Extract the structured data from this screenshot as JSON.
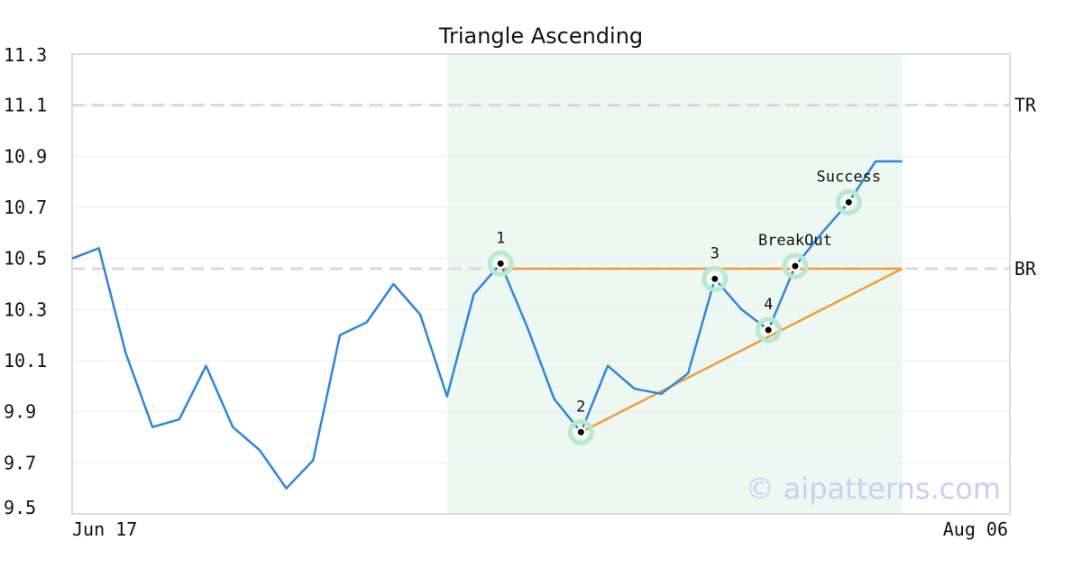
{
  "chart_data": {
    "type": "line",
    "title": "Triangle Ascending",
    "x_labels": {
      "start": "Jun 17",
      "end": "Aug 06"
    },
    "ylim": [
      9.5,
      11.3
    ],
    "y_ticks": [
      "9.5",
      "9.7",
      "9.9",
      "10.1",
      "10.3",
      "10.5",
      "10.7",
      "10.9",
      "11.1",
      "11.3"
    ],
    "grid": true,
    "series": [
      {
        "values": [
          10.5,
          10.54,
          10.13,
          9.84,
          9.87,
          10.08,
          9.84,
          9.75,
          9.6,
          9.71,
          10.2,
          10.25,
          10.4,
          10.28,
          9.96,
          10.36,
          10.48,
          10.23,
          9.95,
          9.82,
          10.08,
          9.99,
          9.97,
          10.05,
          10.42,
          10.3,
          10.22,
          10.47,
          10.6,
          10.72,
          10.88,
          10.88
        ]
      }
    ],
    "pattern_region": {
      "start_index": 14,
      "end_index": 31
    },
    "reference_lines": [
      {
        "label": "TR",
        "value": 11.1
      },
      {
        "label": "BR",
        "value": 10.46
      }
    ],
    "trendlines": [
      {
        "from": [
          16,
          10.46
        ],
        "to": [
          31,
          10.46
        ]
      },
      {
        "from": [
          19,
          9.82
        ],
        "to": [
          31,
          10.46
        ]
      }
    ],
    "markers": [
      {
        "label": "1",
        "index": 16,
        "value": 10.48,
        "label_pos": "above"
      },
      {
        "label": "2",
        "index": 19,
        "value": 9.82,
        "label_pos": "above"
      },
      {
        "label": "3",
        "index": 24,
        "value": 10.42,
        "label_pos": "above"
      },
      {
        "label": "4",
        "index": 26,
        "value": 10.22,
        "label_pos": "above"
      },
      {
        "label": "BreakOut",
        "index": 27,
        "value": 10.47,
        "label_pos": "above"
      },
      {
        "label": "Success",
        "index": 29,
        "value": 10.72,
        "label_pos": "above"
      }
    ],
    "colors": {
      "line": "#2e86de",
      "trend": "#f39c3c",
      "region": "#eef8f3",
      "marker_halo": "#b8e8d0",
      "reference": "#d9d9d9"
    }
  },
  "watermark": "© aipatterns.com"
}
